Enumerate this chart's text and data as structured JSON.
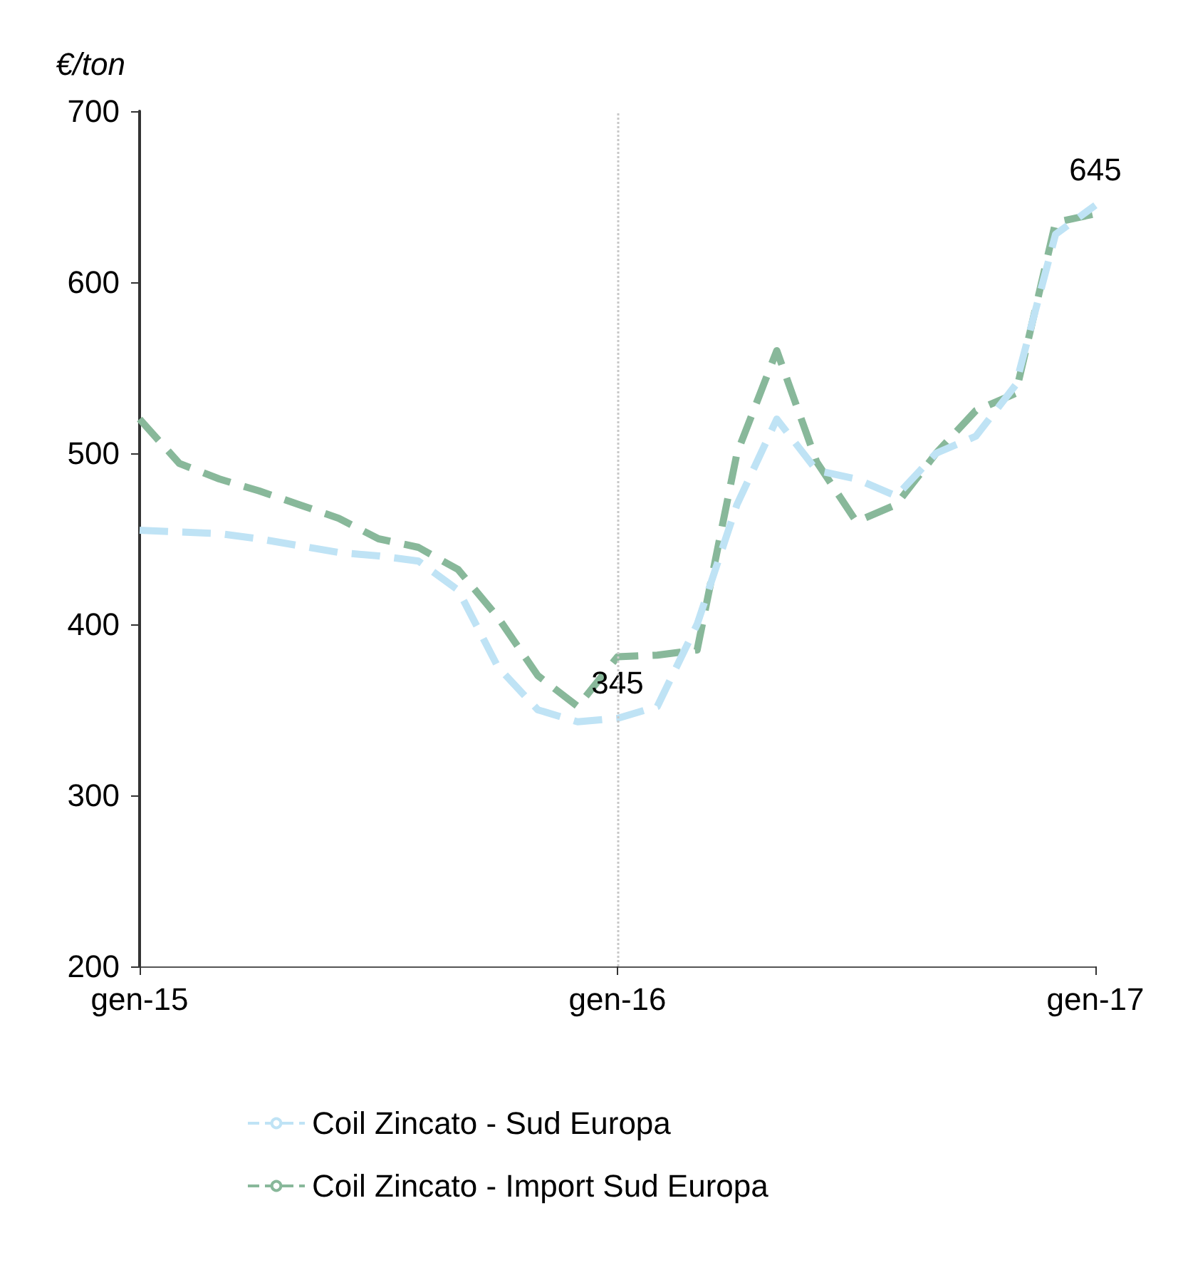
{
  "chart_data": {
    "type": "line",
    "ylabel": "€/ton",
    "categories": [
      "gen-15",
      null,
      null,
      null,
      null,
      null,
      null,
      null,
      null,
      null,
      null,
      null,
      "gen-16",
      null,
      null,
      null,
      null,
      null,
      null,
      null,
      null,
      null,
      null,
      null,
      "gen-17"
    ],
    "series": [
      {
        "name": "Coil Zincato - Sud Europa",
        "color": "#bfe3f5",
        "values": [
          455,
          454,
          453,
          450,
          446,
          442,
          440,
          437,
          420,
          375,
          350,
          343,
          345,
          352,
          400,
          470,
          520,
          490,
          485,
          475,
          500,
          510,
          540,
          628,
          645
        ],
        "value_labels": [
          null,
          null,
          null,
          null,
          null,
          null,
          null,
          null,
          null,
          null,
          null,
          null,
          "345",
          null,
          null,
          null,
          null,
          null,
          null,
          null,
          null,
          null,
          null,
          null,
          "645"
        ]
      },
      {
        "name": "Coil Zincato - Import Sud Europa",
        "color": "#88b89a",
        "values": [
          520,
          494,
          485,
          478,
          470,
          462,
          450,
          445,
          432,
          404,
          370,
          352,
          381,
          382,
          385,
          500,
          560,
          495,
          460,
          470,
          500,
          525,
          535,
          635,
          640
        ]
      }
    ],
    "ylim": [
      200,
      700
    ],
    "yticks": [
      200,
      300,
      400,
      500,
      600,
      700
    ],
    "ref_lines": [
      {
        "axis": "x",
        "value": "gen-16",
        "color": "#c8c8c8",
        "line_style": "dotted"
      }
    ],
    "grid": false,
    "legend": "bottom",
    "marker": "none",
    "line_style": "dashed"
  }
}
